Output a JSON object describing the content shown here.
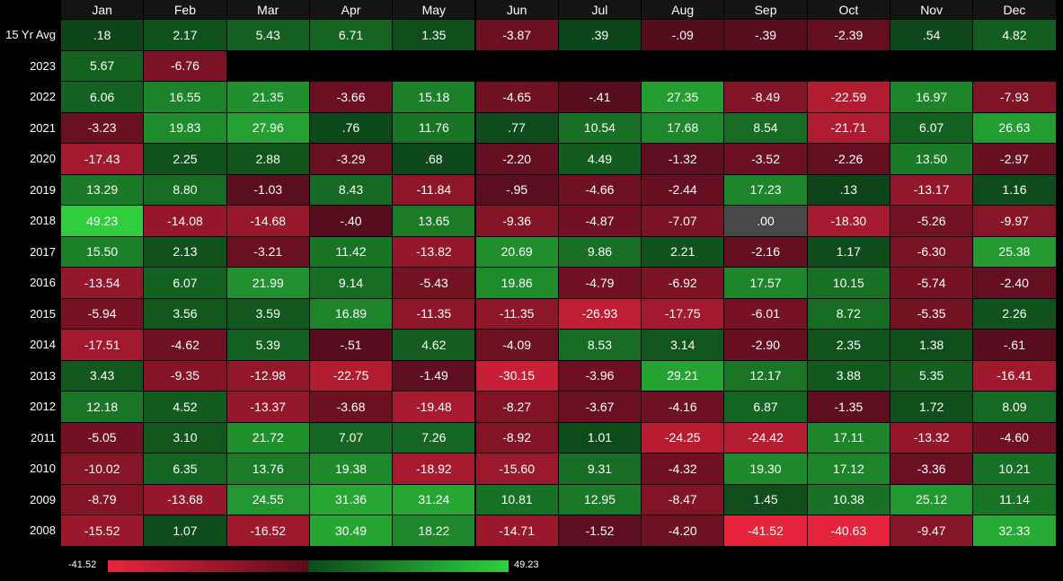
{
  "table": {
    "columns": [
      "Jan",
      "Feb",
      "Mar",
      "Apr",
      "May",
      "Jun",
      "Jul",
      "Aug",
      "Sep",
      "Oct",
      "Nov",
      "Dec"
    ],
    "rows": [
      {
        "label": "15 Yr Avg",
        "cells": [
          ".18",
          "2.17",
          "5.43",
          "6.71",
          "1.35",
          "-3.87",
          ".39",
          "-.09",
          "-.39",
          "-2.39",
          ".54",
          "4.82"
        ]
      },
      {
        "label": "2023",
        "cells": [
          "5.67",
          "-6.76",
          null,
          null,
          null,
          null,
          null,
          null,
          null,
          null,
          null,
          null
        ]
      },
      {
        "label": "2022",
        "cells": [
          "6.06",
          "16.55",
          "21.35",
          "-3.66",
          "15.18",
          "-4.65",
          "-.41",
          "27.35",
          "-8.49",
          "-22.59",
          "16.97",
          "-7.93"
        ]
      },
      {
        "label": "2021",
        "cells": [
          "-3.23",
          "19.83",
          "27.96",
          ".76",
          "11.76",
          ".77",
          "10.54",
          "17.68",
          "8.54",
          "-21.71",
          "6.07",
          "26.63"
        ]
      },
      {
        "label": "2020",
        "cells": [
          "-17.43",
          "2.25",
          "2.88",
          "-3.29",
          ".68",
          "-2.20",
          "4.49",
          "-1.32",
          "-3.52",
          "-2.26",
          "13.50",
          "-2.97"
        ]
      },
      {
        "label": "2019",
        "cells": [
          "13.29",
          "8.80",
          "-1.03",
          "8.43",
          "-11.84",
          "-.95",
          "-4.66",
          "-2.44",
          "17.23",
          ".13",
          "-13.17",
          "1.16"
        ]
      },
      {
        "label": "2018",
        "cells": [
          "49.23",
          "-14.08",
          "-14.68",
          "-.40",
          "13.65",
          "-9.36",
          "-4.87",
          "-7.07",
          ".00",
          "-18.30",
          "-5.26",
          "-9.97"
        ]
      },
      {
        "label": "2017",
        "cells": [
          "15.50",
          "2.13",
          "-3.21",
          "11.42",
          "-13.82",
          "20.69",
          "9.86",
          "2.21",
          "-2.16",
          "1.17",
          "-6.30",
          "25.38"
        ]
      },
      {
        "label": "2016",
        "cells": [
          "-13.54",
          "6.07",
          "21.99",
          "9.14",
          "-5.43",
          "19.86",
          "-4.79",
          "-6.92",
          "17.57",
          "10.15",
          "-5.74",
          "-2.40"
        ]
      },
      {
        "label": "2015",
        "cells": [
          "-5.94",
          "3.56",
          "3.59",
          "16.89",
          "-11.35",
          "-11.35",
          "-26.93",
          "-17.75",
          "-6.01",
          "8.72",
          "-5.35",
          "2.26"
        ]
      },
      {
        "label": "2014",
        "cells": [
          "-17.51",
          "-4.62",
          "5.39",
          "-.51",
          "4.62",
          "-4.09",
          "8.53",
          "3.14",
          "-2.90",
          "2.35",
          "1.38",
          "-.61"
        ]
      },
      {
        "label": "2013",
        "cells": [
          "3.43",
          "-9.35",
          "-12.98",
          "-22.75",
          "-1.49",
          "-30.15",
          "-3.96",
          "29.21",
          "12.17",
          "3.88",
          "5.35",
          "-16.41"
        ]
      },
      {
        "label": "2012",
        "cells": [
          "12.18",
          "4.52",
          "-13.37",
          "-3.68",
          "-19.48",
          "-8.27",
          "-3.67",
          "-4.16",
          "6.87",
          "-1.35",
          "1.72",
          "8.09"
        ]
      },
      {
        "label": "2011",
        "cells": [
          "-5.05",
          "3.10",
          "21.72",
          "7.07",
          "7.26",
          "-8.92",
          "1.01",
          "-24.25",
          "-24.42",
          "17.11",
          "-13.32",
          "-4.60"
        ]
      },
      {
        "label": "2010",
        "cells": [
          "-10.02",
          "6.35",
          "13.76",
          "19.38",
          "-18.92",
          "-15.60",
          "9.31",
          "-4.32",
          "19.30",
          "17.12",
          "-3.36",
          "10.21"
        ]
      },
      {
        "label": "2009",
        "cells": [
          "-8.79",
          "-13.68",
          "24.55",
          "31.36",
          "31.24",
          "10.81",
          "12.95",
          "-8.47",
          "1.45",
          "10.38",
          "25.12",
          "11.14"
        ]
      },
      {
        "label": "2008",
        "cells": [
          "-15.52",
          "1.07",
          "-16.52",
          "30.49",
          "18.22",
          "-14.71",
          "-1.52",
          "-4.20",
          "-41.52",
          "-40.63",
          "-9.47",
          "32.33"
        ]
      }
    ]
  },
  "legend": {
    "min": "-41.52",
    "max": "49.23"
  }
}
